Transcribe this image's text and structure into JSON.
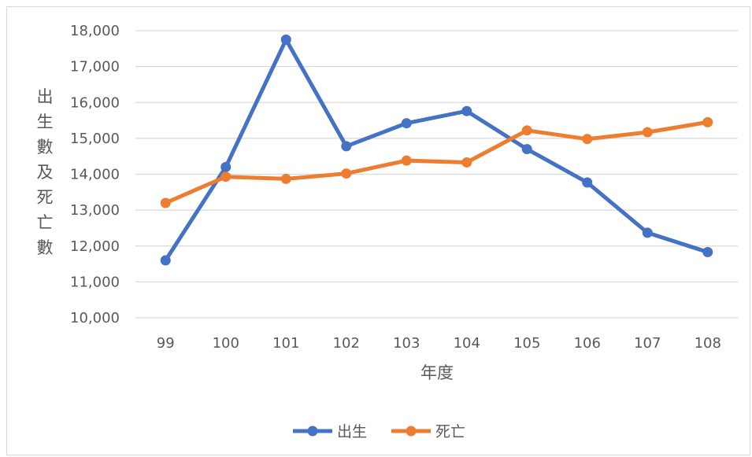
{
  "chart_data": {
    "type": "line",
    "categories": [
      "99",
      "100",
      "101",
      "102",
      "103",
      "104",
      "105",
      "106",
      "107",
      "108"
    ],
    "series": [
      {
        "name": "出生",
        "color": "#4472C4",
        "values": [
          11600,
          14200,
          17750,
          14780,
          15420,
          15760,
          14700,
          13770,
          12370,
          11830
        ]
      },
      {
        "name": "死亡",
        "color": "#ED7D31",
        "values": [
          13200,
          13930,
          13870,
          14020,
          14380,
          14330,
          15220,
          14980,
          15170,
          15450
        ]
      }
    ],
    "xlabel": "年度",
    "ylabel": "出生數及死亡數",
    "ylim": [
      10000,
      18000
    ],
    "ytick_step": 1000,
    "grid": true,
    "legend_position": "bottom"
  }
}
